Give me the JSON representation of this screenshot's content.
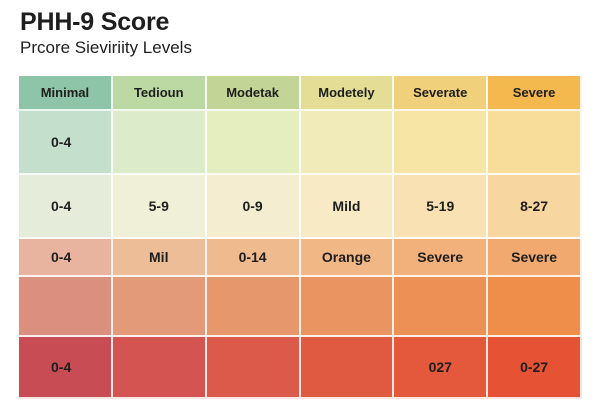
{
  "header": {
    "title": "PHH-9 Score",
    "subtitle": "Prcore Sieviriity Levels"
  },
  "table": {
    "columns": [
      "Minimal",
      "Tedioun",
      "Modetak",
      "Modetely",
      "Severate",
      "Severe"
    ],
    "rows": [
      [
        "0-4",
        "",
        "",
        "",
        "",
        ""
      ],
      [
        "0-4",
        "5-9",
        "0-9",
        "Mild",
        "5-19",
        "8-27"
      ],
      [
        "0-4",
        "Mil",
        "0-14",
        "Orange",
        "Severe",
        "Severe"
      ],
      [
        "",
        "",
        "",
        "",
        "",
        ""
      ],
      [
        "0-4",
        "",
        "",
        "",
        "027",
        "0-27"
      ]
    ]
  },
  "colors": {
    "header": [
      "#8ec4a8",
      "#bcd9a4",
      "#c3d596",
      "#e3dd95",
      "#f1d07c",
      "#f3b84e"
    ],
    "rows": [
      [
        "#c4e0cd",
        "#dcebc9",
        "#e5eebe",
        "#f1ebb9",
        "#f7e5a6",
        "#f8dd9a"
      ],
      [
        "#e6ecda",
        "#f0efd7",
        "#f5edcf",
        "#f7eac5",
        "#f9e1b3",
        "#f8d6a0"
      ],
      [
        "#e8b4a0",
        "#ecbd97",
        "#efba8e",
        "#f1b785",
        "#f2b07b",
        "#f2a970"
      ],
      [
        "#db8f7e",
        "#e39a78",
        "#e7976c",
        "#ea9561",
        "#ec9055",
        "#ee8e4a"
      ],
      [
        "#c84c53",
        "#d35450",
        "#dc5a49",
        "#e05a42",
        "#e4583c",
        "#e55334"
      ]
    ]
  }
}
